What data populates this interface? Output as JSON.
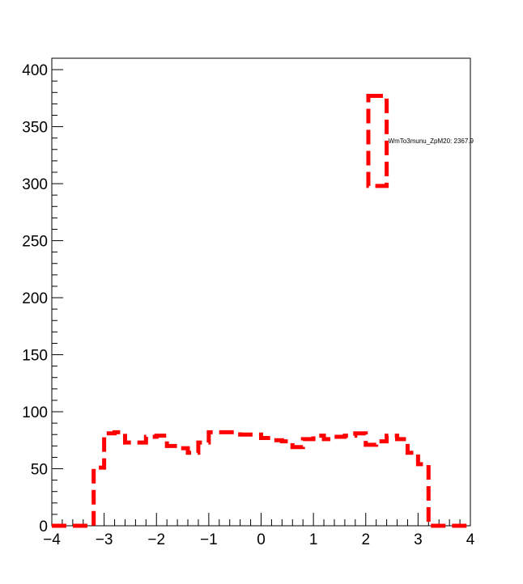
{
  "chart_data": {
    "type": "histogram",
    "title": "",
    "xlabel": "",
    "ylabel": "",
    "xlim": [
      -4,
      4
    ],
    "ylim": [
      0,
      410
    ],
    "x_ticks": [
      "−4",
      "−3",
      "−2",
      "−1",
      "0",
      "1",
      "2",
      "3",
      "4"
    ],
    "y_ticks": [
      "0",
      "50",
      "100",
      "150",
      "200",
      "250",
      "300",
      "350",
      "400"
    ],
    "grid": false,
    "line_color": "#ff0000",
    "line_style": "dashed",
    "bin_edges": [
      -4.0,
      -3.2,
      -3.0,
      -2.8,
      -2.6,
      -2.4,
      -2.2,
      -2.0,
      -1.8,
      -1.6,
      -1.4,
      -1.2,
      -1.0,
      -0.8,
      -0.6,
      -0.4,
      -0.2,
      0.0,
      0.2,
      0.4,
      0.6,
      0.8,
      1.0,
      1.2,
      1.4,
      1.6,
      1.8,
      2.0,
      2.2,
      2.4,
      2.6,
      2.8,
      3.0,
      3.2,
      4.0
    ],
    "series": [
      {
        "name": "WmTo3munu_ZpM20",
        "values": [
          0,
          51,
          81,
          82,
          73,
          73,
          78,
          79,
          70,
          68,
          64,
          73,
          82,
          82,
          82,
          80,
          80,
          77,
          75,
          74,
          69,
          76,
          79,
          76,
          78,
          79,
          81,
          71,
          74,
          79,
          76,
          64,
          54,
          0
        ]
      }
    ],
    "legend": {
      "placement": "top-right",
      "entries": [
        {
          "label": "WmTo3munu_ZpM20: 2367.9",
          "color": "#ff0000",
          "box_range": [
            298,
            377
          ],
          "x_range": [
            2.05,
            2.4
          ]
        }
      ]
    }
  }
}
